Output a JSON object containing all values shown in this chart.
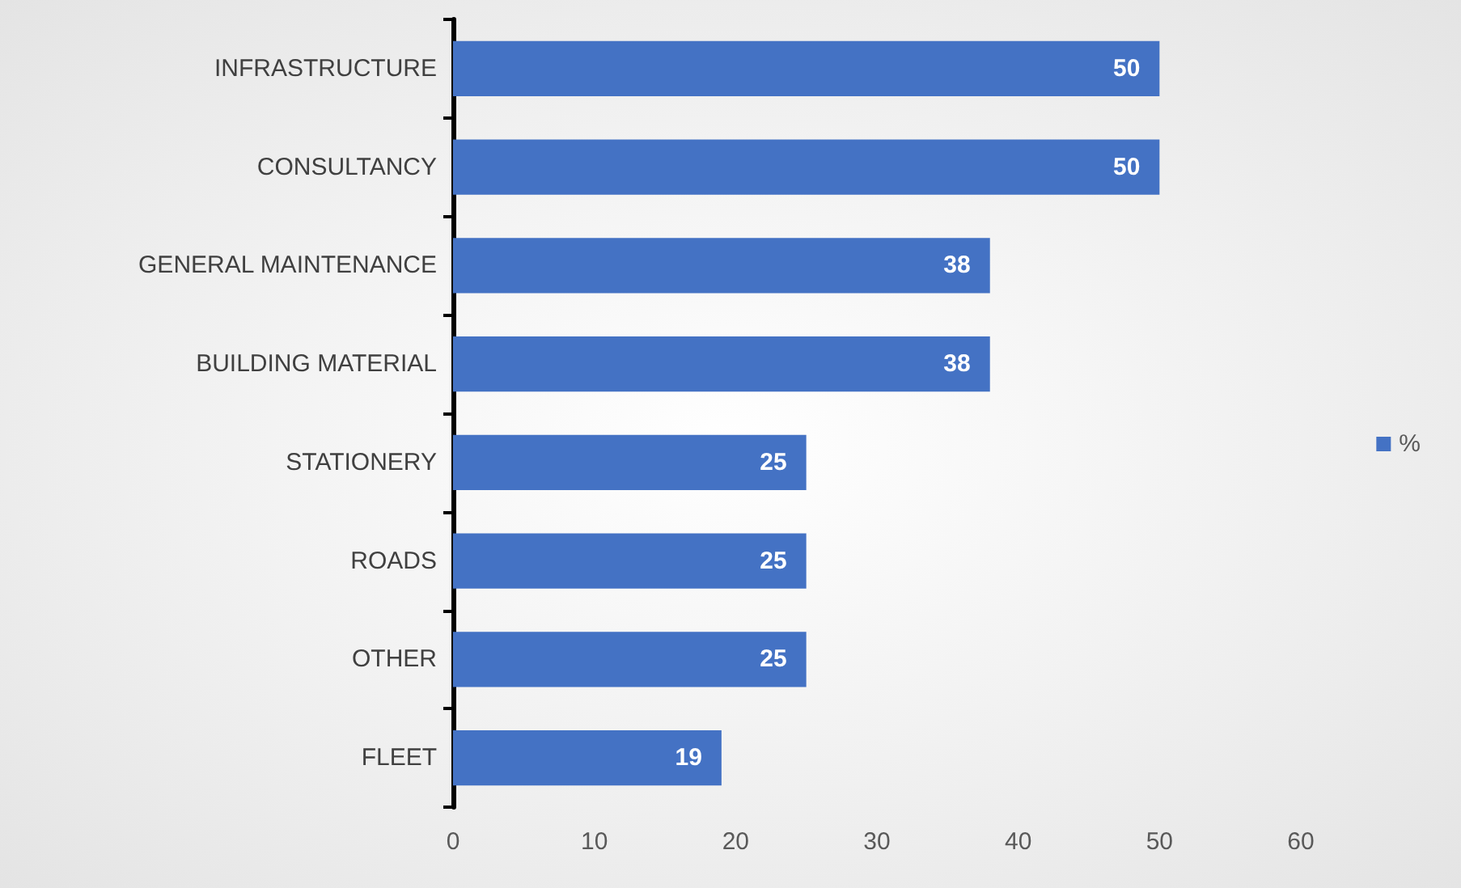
{
  "chart_data": {
    "type": "bar",
    "orientation": "horizontal",
    "categories": [
      "INFRASTRUCTURE",
      "CONSULTANCY",
      "GENERAL MAINTENANCE",
      "BUILDING MATERIAL",
      "STATIONERY",
      "ROADS",
      "OTHER",
      "FLEET"
    ],
    "series": [
      {
        "name": "%",
        "color": "#4472c4",
        "values": [
          50,
          50,
          38,
          38,
          25,
          25,
          25,
          19
        ]
      }
    ],
    "xlim": [
      0,
      60
    ],
    "xticks": [
      0,
      10,
      20,
      30,
      40,
      50,
      60
    ],
    "data_labels": true,
    "legend": "right"
  }
}
